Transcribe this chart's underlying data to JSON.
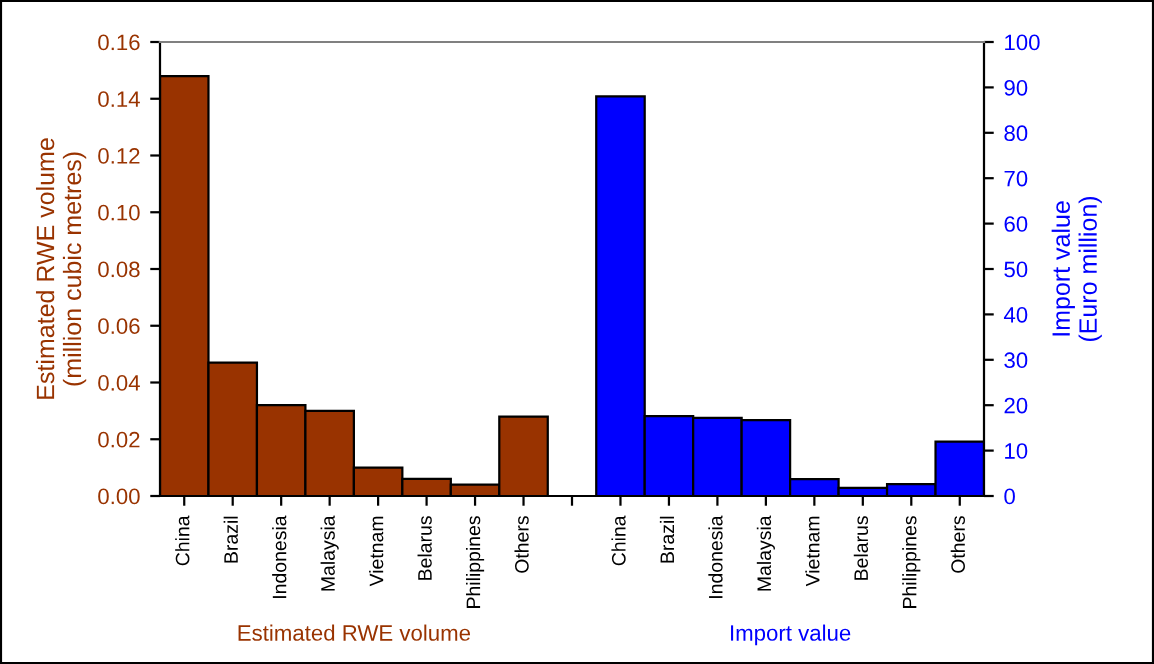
{
  "chart_data": {
    "type": "bar",
    "ylabel": "Estimated RWE volume\n(million cubic metres)",
    "y2label": "Import value\n(Euro million)",
    "categories": [
      "China",
      "Brazil",
      "Indonesia",
      "Malaysia",
      "Vietnam",
      "Belarus",
      "Philippines",
      "Others",
      null,
      "China",
      "Brazil",
      "Indonesia",
      "Malaysia",
      "Vietnam",
      "Belarus",
      "Philippines",
      "Others"
    ],
    "series": [
      {
        "color": "#993300",
        "values": [
          0.148,
          0.047,
          0.032,
          0.03,
          0.01,
          0.006,
          0.004,
          0.028,
          null,
          null,
          null,
          null,
          null,
          null,
          null,
          null,
          null
        ]
      },
      {
        "color": "#0000ff",
        "axis": "y2",
        "values": [
          null,
          null,
          null,
          null,
          null,
          null,
          null,
          null,
          null,
          88,
          17.6,
          17.2,
          16.7,
          3.7,
          1.8,
          2.6,
          12.0
        ]
      }
    ],
    "ylim": [
      0,
      0.16
    ],
    "yticks": [
      {
        "value": 0,
        "label": "0.00"
      },
      {
        "value": 0.02,
        "label": "0.02"
      },
      {
        "value": 0.04,
        "label": "0.04"
      },
      {
        "value": 0.06,
        "label": "0.06"
      },
      {
        "value": 0.08,
        "label": "0.08"
      },
      {
        "value": 0.1,
        "label": "0.10"
      },
      {
        "value": 0.12,
        "label": "0.12"
      },
      {
        "value": 0.14,
        "label": "0.14"
      },
      {
        "value": 0.16,
        "label": "0.16"
      }
    ],
    "y2lim": [
      0,
      100
    ],
    "y2ticks": [
      0,
      10,
      20,
      30,
      40,
      50,
      60,
      70,
      80,
      90,
      100
    ],
    "annotations": [
      "Estimated RWE volume",
      "Import value"
    ],
    "grid": false,
    "legend": false
  }
}
